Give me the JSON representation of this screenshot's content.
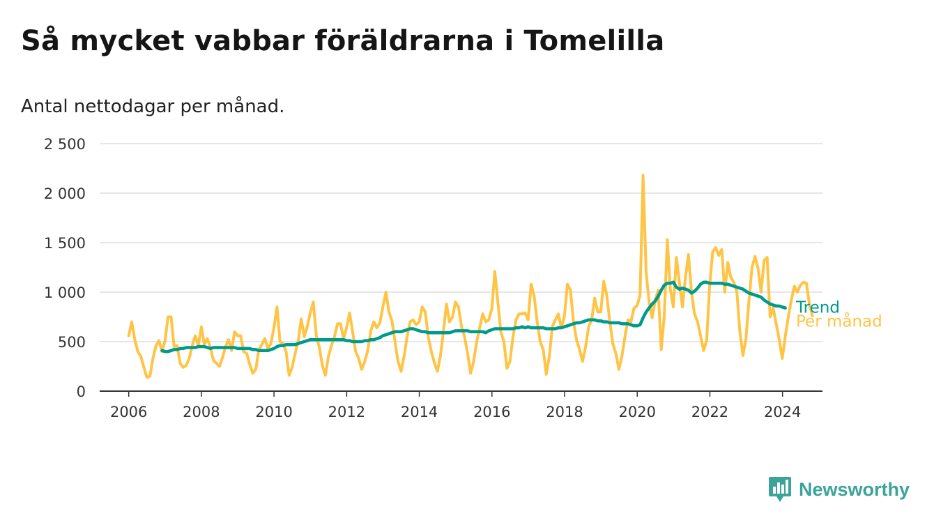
{
  "header": {
    "title": "Så mycket vabbar föräldrarna i Tomelilla",
    "subtitle": "Antal nettodagar per månad."
  },
  "brand": {
    "name": "Newsworthy",
    "color": "#3aa39a"
  },
  "colors": {
    "monthly": "#ffc445",
    "trend": "#00998a",
    "grid": "#dddddd",
    "axis": "#333333"
  },
  "chart_data": {
    "type": "line",
    "title": "Så mycket vabbar föräldrarna i Tomelilla",
    "subtitle": "Antal nettodagar per månad.",
    "ylim": [
      0,
      2500
    ],
    "xlim": [
      2005.2,
      2025.1
    ],
    "yticks": [
      0,
      500,
      1000,
      1500,
      2000,
      2500
    ],
    "ytick_labels": [
      "0",
      "500",
      "1 000",
      "1 500",
      "2 000",
      "2 500"
    ],
    "xticks": [
      2006,
      2008,
      2010,
      2012,
      2014,
      2016,
      2018,
      2020,
      2022,
      2024
    ],
    "xtick_labels": [
      "2006",
      "2008",
      "2010",
      "2012",
      "2014",
      "2016",
      "2018",
      "2020",
      "2022",
      "2024"
    ],
    "grid": "horizontal",
    "legend": "direct labels at line ends (right)",
    "series": [
      {
        "name": "Per månad",
        "color": "#ffc445",
        "x_start": 2006.0,
        "x_step": 0.0833,
        "values": [
          560,
          700,
          520,
          400,
          350,
          240,
          140,
          150,
          330,
          460,
          510,
          400,
          510,
          750,
          750,
          450,
          460,
          280,
          240,
          260,
          330,
          460,
          560,
          460,
          650,
          470,
          530,
          440,
          310,
          280,
          250,
          340,
          450,
          520,
          410,
          600,
          560,
          560,
          400,
          380,
          270,
          180,
          220,
          420,
          470,
          530,
          430,
          480,
          640,
          850,
          500,
          480,
          400,
          160,
          240,
          380,
          500,
          730,
          550,
          650,
          790,
          900,
          560,
          440,
          260,
          160,
          350,
          460,
          550,
          680,
          680,
          530,
          640,
          790,
          600,
          400,
          330,
          220,
          300,
          410,
          610,
          700,
          640,
          690,
          850,
          1000,
          800,
          710,
          500,
          300,
          200,
          350,
          550,
          700,
          720,
          670,
          700,
          850,
          800,
          550,
          400,
          290,
          200,
          350,
          600,
          880,
          700,
          750,
          900,
          850,
          650,
          550,
          380,
          180,
          300,
          500,
          640,
          780,
          700,
          720,
          830,
          1210,
          900,
          600,
          500,
          230,
          300,
          550,
          720,
          780,
          780,
          790,
          720,
          1080,
          960,
          700,
          500,
          420,
          170,
          350,
          650,
          720,
          780,
          640,
          760,
          1080,
          1020,
          700,
          520,
          420,
          300,
          450,
          650,
          720,
          940,
          800,
          800,
          1110,
          970,
          700,
          480,
          380,
          220,
          350,
          550,
          720,
          700,
          840,
          860,
          970,
          2180,
          1200,
          900,
          740,
          920,
          1020,
          420,
          760,
          1530,
          1030,
          850,
          1350,
          1100,
          850,
          1150,
          1380,
          1000,
          780,
          700,
          560,
          410,
          510,
          1060,
          1410,
          1450,
          1370,
          1430,
          1000,
          1300,
          1150,
          1100,
          1000,
          600,
          360,
          530,
          920,
          1250,
          1360,
          1240,
          1000,
          1320,
          1350,
          750,
          840,
          680,
          520,
          330,
          550,
          750,
          920,
          1060,
          1000,
          1070,
          1100,
          1090,
          870,
          760
        ]
      },
      {
        "name": "Trend",
        "color": "#00998a",
        "x_start": 2006.9167,
        "x_step": 0.0833,
        "values": [
          410,
          400,
          400,
          410,
          420,
          420,
          430,
          430,
          440,
          440,
          440,
          440,
          450,
          450,
          450,
          440,
          430,
          440,
          440,
          440,
          440,
          440,
          440,
          440,
          440,
          430,
          430,
          430,
          430,
          430,
          420,
          420,
          410,
          410,
          410,
          410,
          420,
          430,
          450,
          460,
          460,
          470,
          470,
          470,
          470,
          480,
          490,
          500,
          510,
          520,
          520,
          520,
          520,
          520,
          520,
          520,
          520,
          520,
          520,
          520,
          520,
          510,
          510,
          500,
          500,
          500,
          500,
          510,
          510,
          520,
          520,
          530,
          540,
          560,
          570,
          580,
          590,
          600,
          600,
          600,
          610,
          620,
          630,
          630,
          620,
          610,
          600,
          600,
          590,
          590,
          590,
          590,
          590,
          590,
          590,
          590,
          600,
          610,
          610,
          610,
          610,
          610,
          600,
          600,
          600,
          600,
          600,
          590,
          610,
          620,
          630,
          630,
          630,
          630,
          630,
          630,
          630,
          640,
          640,
          650,
          640,
          650,
          640,
          640,
          640,
          640,
          640,
          630,
          630,
          630,
          630,
          640,
          640,
          650,
          660,
          670,
          680,
          690,
          690,
          700,
          710,
          720,
          720,
          720,
          710,
          710,
          700,
          700,
          690,
          690,
          690,
          690,
          680,
          680,
          680,
          670,
          660,
          660,
          670,
          740,
          800,
          840,
          880,
          910,
          960,
          1020,
          1070,
          1090,
          1090,
          1100,
          1050,
          1030,
          1040,
          1030,
          1020,
          990,
          1010,
          1040,
          1080,
          1100,
          1100,
          1090,
          1090,
          1090,
          1090,
          1090,
          1080,
          1080,
          1070,
          1060,
          1050,
          1040,
          1030,
          1010,
          990,
          980,
          970,
          960,
          950,
          920,
          900,
          880,
          870,
          860,
          860,
          850,
          840
        ]
      }
    ],
    "series_labels": [
      {
        "name": "Trend",
        "color": "#00998a"
      },
      {
        "name": "Per månad",
        "color": "#ffc445"
      }
    ]
  }
}
